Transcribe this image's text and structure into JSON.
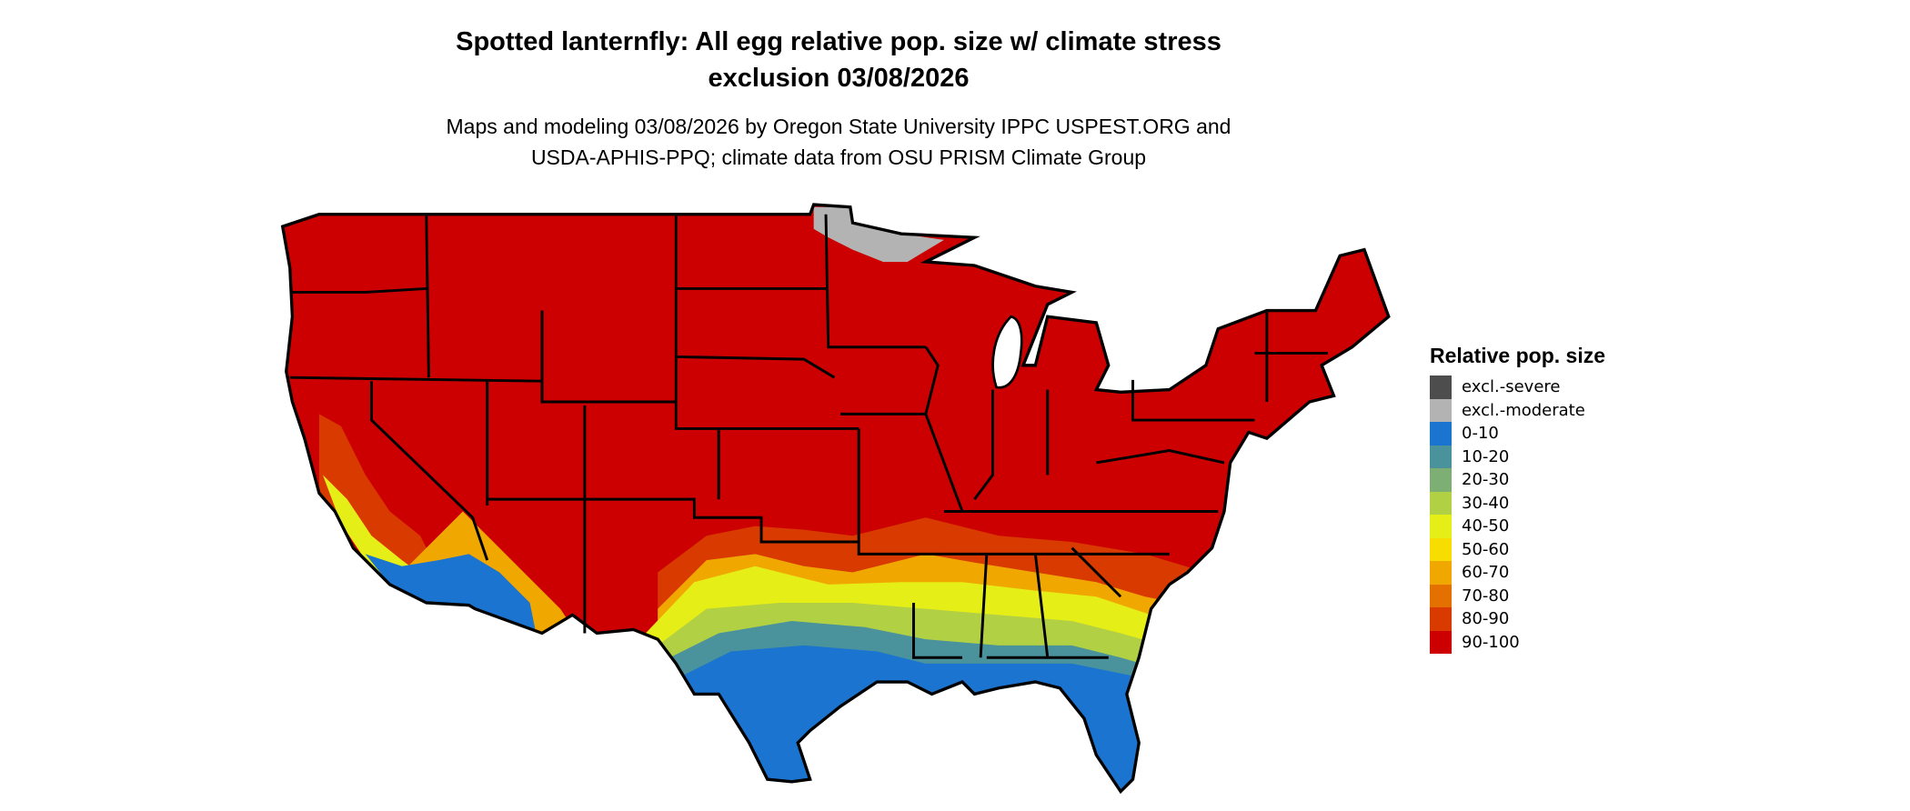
{
  "title_line1": "Spotted lanternfly: All egg relative pop. size w/ climate stress",
  "title_line2": "exclusion 03/08/2026",
  "subtitle_line1": "Maps and modeling 03/08/2026 by Oregon State University IPPC USPEST.ORG and",
  "subtitle_line2": "USDA-APHIS-PPQ; climate data from OSU PRISM Climate Group",
  "legend": {
    "title": "Relative pop. size",
    "items": [
      {
        "label": "excl.-severe",
        "color": "#4d4d4d"
      },
      {
        "label": "excl.-moderate",
        "color": "#b3b3b3"
      },
      {
        "label": "0-10",
        "color": "#1b74cf"
      },
      {
        "label": "10-20",
        "color": "#4a929c"
      },
      {
        "label": "20-30",
        "color": "#7dae74"
      },
      {
        "label": "30-40",
        "color": "#b2d043"
      },
      {
        "label": "40-50",
        "color": "#e6ee17"
      },
      {
        "label": "50-60",
        "color": "#f7dd00"
      },
      {
        "label": "60-70",
        "color": "#f0a700"
      },
      {
        "label": "70-80",
        "color": "#e47000"
      },
      {
        "label": "80-90",
        "color": "#d83a00"
      },
      {
        "label": "90-100",
        "color": "#cc0000"
      }
    ]
  }
}
